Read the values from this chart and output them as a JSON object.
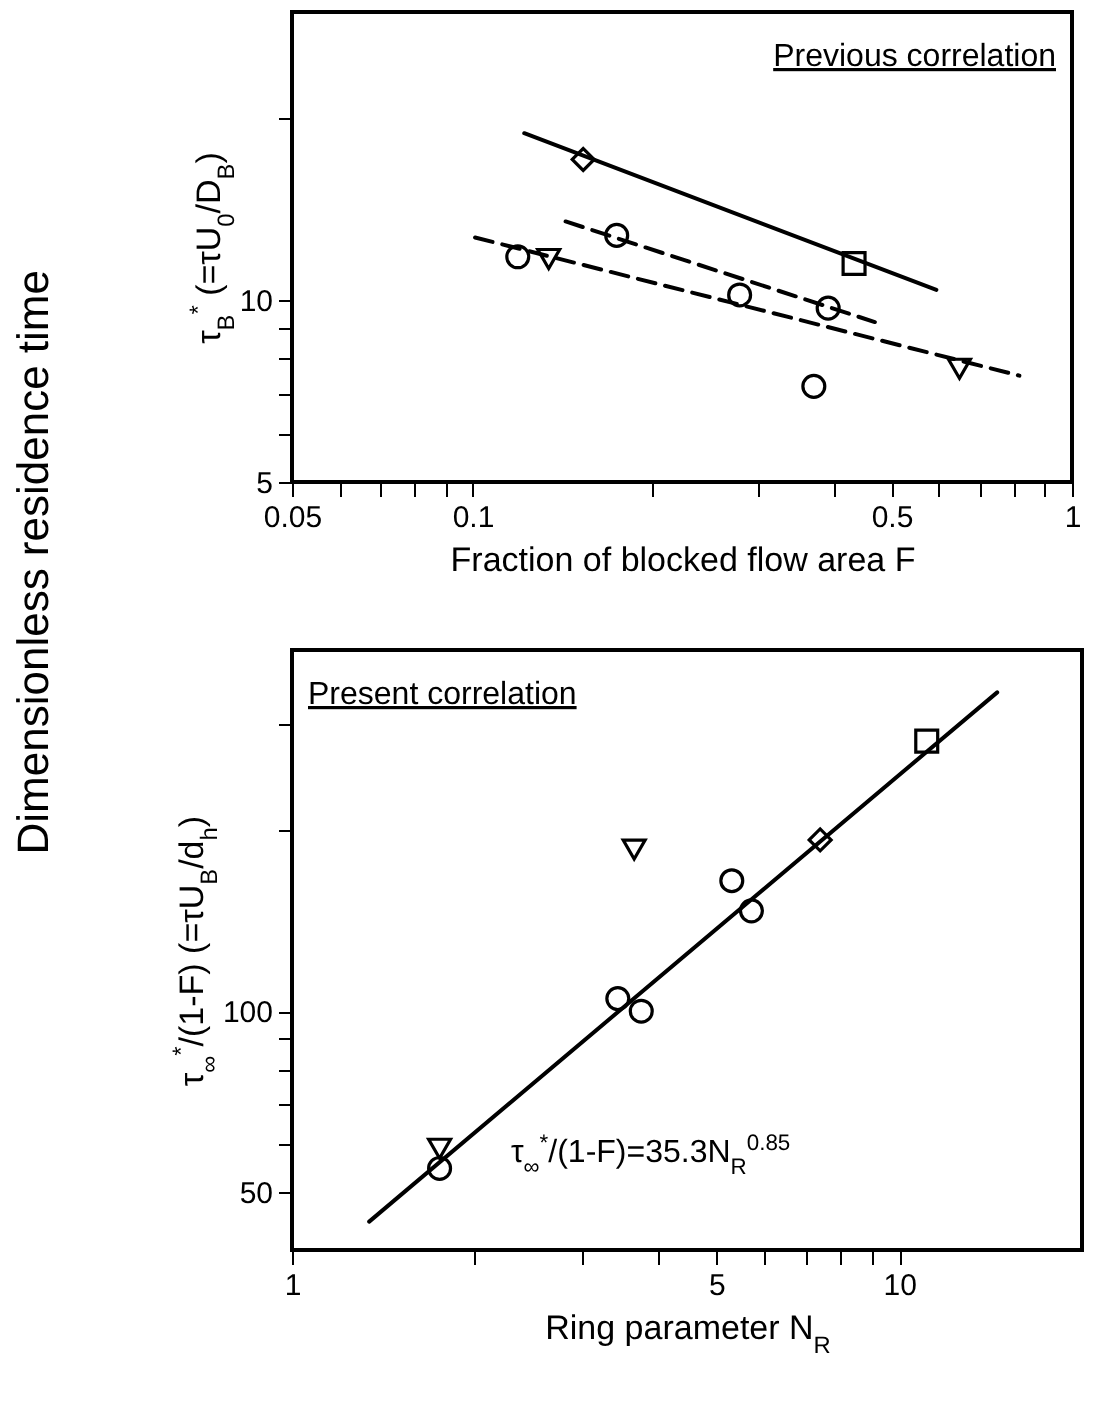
{
  "chart_data": [
    {
      "type": "scatter",
      "xlabel": "Fraction of blocked flow area F",
      "ylabel": "τ$_{B}$$^{*}$ (=τU$_{0}$/D$_{B}$)",
      "log": "xy",
      "grid": false,
      "xlim": [
        0.05,
        1
      ],
      "ylim": [
        5,
        30
      ],
      "xticks": [
        0.05,
        {
          "value": 0.06,
          "label": null
        },
        {
          "value": 0.07,
          "label": null
        },
        {
          "value": 0.08,
          "label": null
        },
        {
          "value": 0.09,
          "label": null
        },
        0.1,
        {
          "value": 0.2,
          "label": null
        },
        {
          "value": 0.3,
          "label": null
        },
        {
          "value": 0.4,
          "label": null
        },
        0.5,
        {
          "value": 0.6,
          "label": null
        },
        {
          "value": 0.7,
          "label": null
        },
        {
          "value": 0.8,
          "label": null
        },
        {
          "value": 0.9,
          "label": null
        },
        1
      ],
      "yticks": [
        5,
        {
          "value": 6,
          "label": null
        },
        {
          "value": 7,
          "label": null
        },
        {
          "value": 8,
          "label": null
        },
        {
          "value": 9,
          "label": null
        },
        10,
        {
          "value": 20,
          "label": null
        }
      ],
      "annotations": [
        "Previous correlation",
        "Dimensionless residence time"
      ],
      "series": [
        {
          "type": "line",
          "color": "#000000",
          "line_style": "solid",
          "x": [
            0.122,
            0.594
          ],
          "values": [
            18.9,
            10.4
          ]
        },
        {
          "type": "line",
          "color": "#000000",
          "line_style": "dashed",
          "x": [
            0.143,
            0.469
          ],
          "values": [
            13.5,
            9.2
          ]
        },
        {
          "type": "line",
          "color": "#000000",
          "line_style": "dashed",
          "x": [
            0.101,
            0.817
          ],
          "values": [
            12.7,
            7.5
          ]
        },
        {
          "color": "#000000",
          "marker": "diamond",
          "x": [
            0.153
          ],
          "values": [
            17.1
          ]
        },
        {
          "color": "#000000",
          "marker": "square",
          "x": [
            0.433
          ],
          "values": [
            11.5
          ]
        },
        {
          "color": "#000000",
          "marker": "circle",
          "x": [
            0.174,
            0.119,
            0.279,
            0.392,
            0.371
          ],
          "values": [
            12.8,
            11.8,
            10.2,
            9.7,
            7.2
          ]
        },
        {
          "color": "#000000",
          "marker": "triangle",
          "x": [
            0.134,
            0.649
          ],
          "values": [
            11.7,
            7.7
          ]
        }
      ]
    },
    {
      "type": "scatter",
      "xlabel": "Ring parameter N$_{R}$",
      "ylabel": "τ$_{∞}$$^{*}$/(1-F) (=τU$_{B}$/d$_{h}$)",
      "log": "xy",
      "grid": false,
      "xlim": [
        1,
        20
      ],
      "ylim": [
        40,
        400
      ],
      "xticks": [
        1,
        {
          "value": 2,
          "label": null
        },
        {
          "value": 3,
          "label": null
        },
        {
          "value": 4,
          "label": null
        },
        5,
        {
          "value": 6,
          "label": null
        },
        {
          "value": 7,
          "label": null
        },
        {
          "value": 8,
          "label": null
        },
        {
          "value": 9,
          "label": null
        },
        10
      ],
      "yticks": [
        50,
        {
          "value": 60,
          "label": null
        },
        {
          "value": 70,
          "label": null
        },
        {
          "value": 80,
          "label": null
        },
        {
          "value": 90,
          "label": null
        },
        100,
        {
          "value": 200,
          "label": null
        },
        {
          "value": 300,
          "label": null
        }
      ],
      "annotations": [
        "Present correlation",
        {
          "text": "τ$_{∞}$$^{*}$/(1-F)=35.3N$_{R}$$^{0.85}$",
          "x": 2.88,
          "y": 83
        }
      ],
      "series": [
        {
          "type": "line",
          "color": "#000000",
          "line_style": "solid",
          "x": [
            1.34,
            14.5
          ],
          "values": [
            44.6,
            340
          ]
        },
        {
          "color": "#000000",
          "marker": "square",
          "x": [
            11.1
          ],
          "values": [
            282
          ]
        },
        {
          "color": "#000000",
          "marker": "diamond",
          "x": [
            7.41
          ],
          "values": [
            193
          ]
        },
        {
          "color": "#000000",
          "marker": "triangle",
          "x": [
            3.66,
            1.75
          ],
          "values": [
            186,
            59
          ]
        },
        {
          "color": "#000000",
          "marker": "circle",
          "x": [
            5.3,
            5.71,
            3.44,
            3.76,
            1.75
          ],
          "values": [
            165,
            147,
            105,
            100,
            54.7
          ]
        }
      ]
    }
  ]
}
